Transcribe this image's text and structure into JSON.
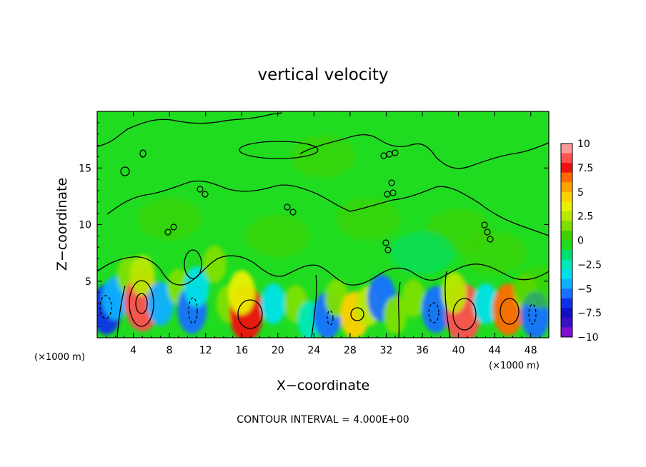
{
  "chart_data": {
    "type": "heatmap",
    "title": "vertical velocity",
    "xlabel": "X−coordinate",
    "ylabel": "Z−coordinate",
    "x_unit": "(×1000 m)",
    "x_unit_right": "(×1000 m)",
    "xlim": [
      0,
      50
    ],
    "ylim": [
      0,
      20
    ],
    "x_ticks": [
      4,
      8,
      12,
      16,
      20,
      24,
      28,
      32,
      36,
      40,
      44,
      48
    ],
    "y_ticks": [
      5,
      10,
      15
    ],
    "colorbar": {
      "range": [
        -10,
        10
      ],
      "ticks": [
        "10",
        "7.5",
        "5",
        "2.5",
        "0",
        "−2.5",
        "−5",
        "−7.5",
        "−10"
      ],
      "colors": [
        "#ff9a9a",
        "#ff5050",
        "#f01010",
        "#ff6a00",
        "#ffa400",
        "#ffd000",
        "#e8f000",
        "#b8e800",
        "#7ee000",
        "#40d000",
        "#20dc20",
        "#00e070",
        "#00e8b8",
        "#00e0e8",
        "#10b0ff",
        "#1870ff",
        "#1030e8",
        "#1010c0",
        "#3a10c8",
        "#8010d0"
      ]
    },
    "cells": [
      {
        "x": 1.0,
        "z": 2.5,
        "value": -6
      },
      {
        "x": 2.0,
        "z": 3.5,
        "value": -4
      },
      {
        "x": 3.5,
        "z": 5.5,
        "value": 2
      },
      {
        "x": 5.0,
        "z": 3.2,
        "value": 9
      },
      {
        "x": 5.0,
        "z": 5.5,
        "value": 3
      },
      {
        "x": 7.0,
        "z": 3.0,
        "value": -4
      },
      {
        "x": 9.0,
        "z": 4.5,
        "value": 1.5
      },
      {
        "x": 10.5,
        "z": 2.5,
        "value": -5.5
      },
      {
        "x": 11.0,
        "z": 4.5,
        "value": -3
      },
      {
        "x": 13.0,
        "z": 6.5,
        "value": 2
      },
      {
        "x": 14.5,
        "z": 3.0,
        "value": 2
      },
      {
        "x": 16.5,
        "z": 2.2,
        "value": 8
      },
      {
        "x": 16.0,
        "z": 4.0,
        "value": 4
      },
      {
        "x": 19.5,
        "z": 3.0,
        "value": -3
      },
      {
        "x": 22.0,
        "z": 3.0,
        "value": 2
      },
      {
        "x": 23.5,
        "z": 1.5,
        "value": -2.5
      },
      {
        "x": 25.5,
        "z": 2.0,
        "value": -5
      },
      {
        "x": 26.5,
        "z": 3.5,
        "value": 2
      },
      {
        "x": 28.5,
        "z": 2.0,
        "value": 5
      },
      {
        "x": 30.0,
        "z": 2.8,
        "value": 3
      },
      {
        "x": 31.5,
        "z": 3.5,
        "value": -5
      },
      {
        "x": 33.0,
        "z": 2.0,
        "value": 2
      },
      {
        "x": 35.0,
        "z": 3.5,
        "value": 2
      },
      {
        "x": 37.5,
        "z": 2.5,
        "value": -5
      },
      {
        "x": 40.5,
        "z": 2.2,
        "value": 9
      },
      {
        "x": 39.5,
        "z": 4.0,
        "value": 3
      },
      {
        "x": 43.0,
        "z": 3.0,
        "value": -3
      },
      {
        "x": 45.5,
        "z": 2.5,
        "value": 6.5
      },
      {
        "x": 47.5,
        "z": 4.0,
        "value": 2
      },
      {
        "x": 48.5,
        "z": 2.0,
        "value": -5
      },
      {
        "x": 49.5,
        "z": 4.5,
        "value": 1
      },
      {
        "x": 8.0,
        "z": 10.5,
        "value": 0.8
      },
      {
        "x": 20.0,
        "z": 9.0,
        "value": 0.6
      },
      {
        "x": 30.0,
        "z": 10.5,
        "value": 0.7
      },
      {
        "x": 40.0,
        "z": 9.5,
        "value": 0.8
      },
      {
        "x": 44.0,
        "z": 7.5,
        "value": 1
      },
      {
        "x": 25.0,
        "z": 16.0,
        "value": 0.3
      },
      {
        "x": 36.0,
        "z": 7.5,
        "value": -1
      }
    ],
    "contour_interval": "CONTOUR INTERVAL =  4.000E+00"
  }
}
